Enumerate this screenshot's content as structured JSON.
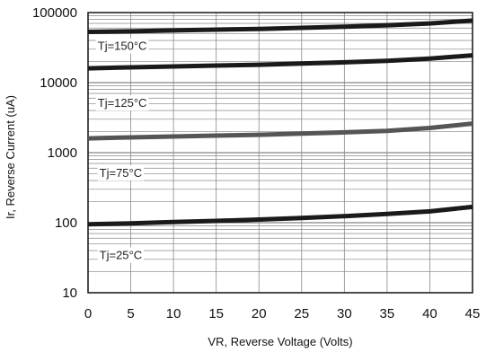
{
  "chart_data": {
    "type": "line",
    "xlabel": "VR, Reverse Voltage (Volts)",
    "ylabel": "Ir, Reverse Current (uA)",
    "xlim": [
      0,
      45
    ],
    "ylim": [
      10,
      100000
    ],
    "yscale": "log",
    "grid": true,
    "x_ticks": [
      0,
      5,
      10,
      15,
      20,
      25,
      30,
      35,
      40,
      45
    ],
    "y_ticks": [
      {
        "value": 10,
        "label": "10"
      },
      {
        "value": 100,
        "label": "100"
      },
      {
        "value": 1000,
        "label": "1000"
      },
      {
        "value": 10000,
        "label": "10000"
      },
      {
        "value": 100000,
        "label": "100000"
      }
    ],
    "x": [
      0,
      5,
      10,
      15,
      20,
      25,
      30,
      35,
      40,
      45
    ],
    "series": [
      {
        "values": [
          53000,
          54000,
          55500,
          57000,
          58500,
          60500,
          63000,
          66000,
          70000,
          77000
        ],
        "color": "#1a1a1a"
      },
      {
        "values": [
          16000,
          16500,
          17000,
          17500,
          18000,
          18700,
          19500,
          20500,
          22000,
          24500
        ],
        "color": "#1a1a1a"
      },
      {
        "values": [
          1600,
          1650,
          1700,
          1750,
          1800,
          1870,
          1950,
          2050,
          2250,
          2600
        ],
        "color": "#555555"
      },
      {
        "values": [
          95,
          98,
          102,
          106,
          111,
          117,
          124,
          133,
          145,
          168
        ],
        "color": "#1a1a1a"
      }
    ],
    "annotations": [
      {
        "text": "Tj=150°C",
        "x": 0.5,
        "y": 34000
      },
      {
        "text": "Tj=125°C",
        "x": 0.5,
        "y": 5200
      },
      {
        "text": "Tj=75°C",
        "x": 0.7,
        "y": 520
      },
      {
        "text": "Tj=25°C",
        "x": 0.7,
        "y": 35
      }
    ]
  }
}
